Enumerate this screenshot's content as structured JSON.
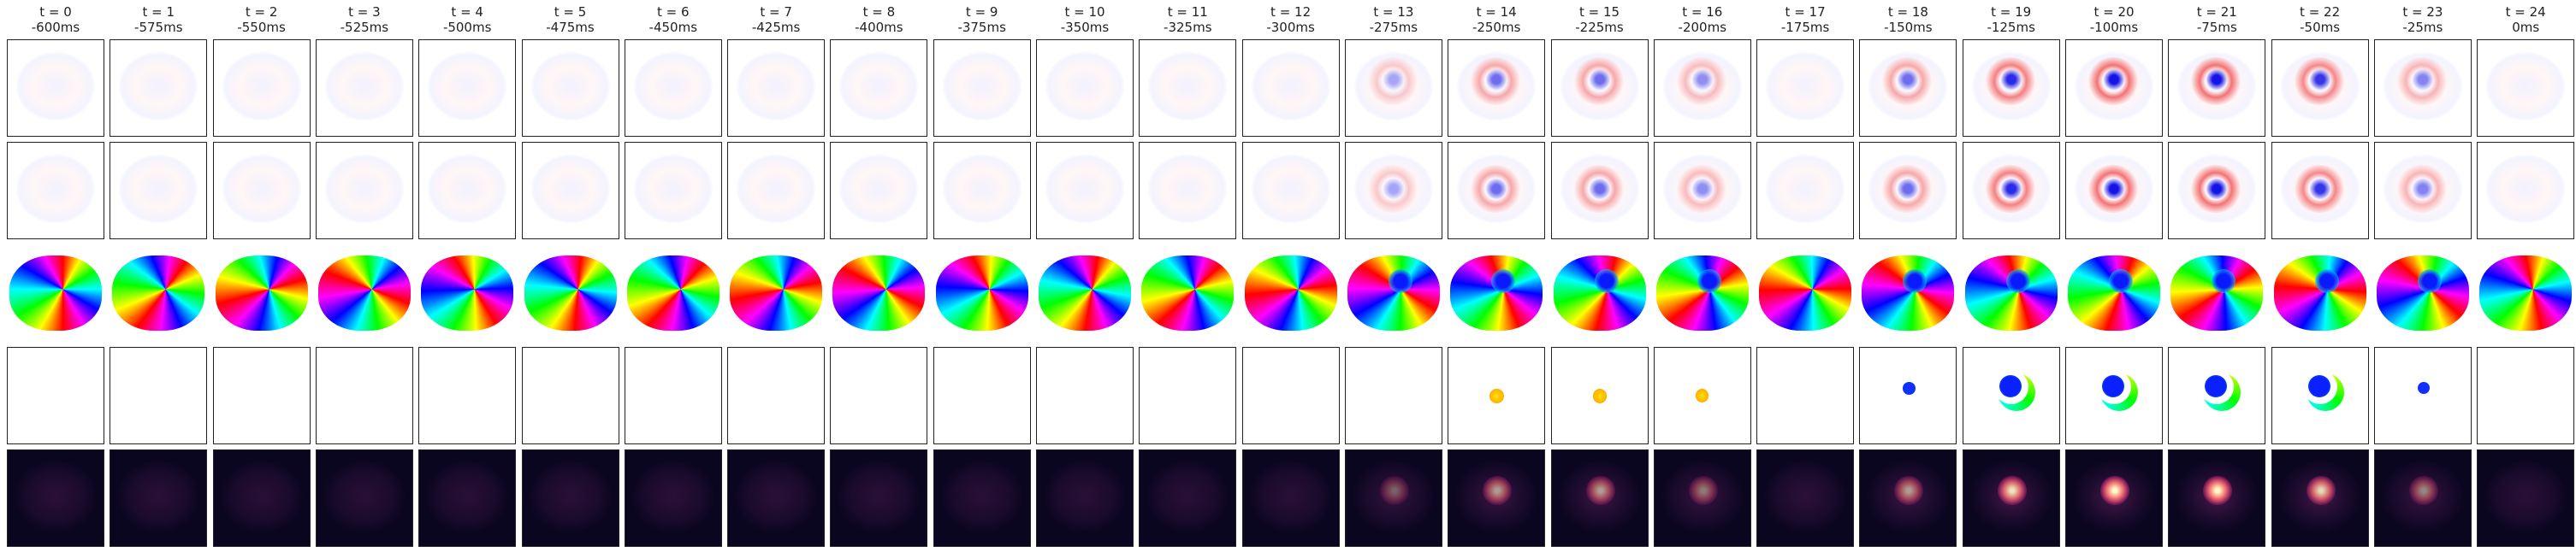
{
  "columns": [
    {
      "label": "t = 0",
      "time": "-600ms"
    },
    {
      "label": "t = 1",
      "time": "-575ms"
    },
    {
      "label": "t = 2",
      "time": "-550ms"
    },
    {
      "label": "t = 3",
      "time": "-525ms"
    },
    {
      "label": "t = 4",
      "time": "-500ms"
    },
    {
      "label": "t = 5",
      "time": "-475ms"
    },
    {
      "label": "t = 6",
      "time": "-450ms"
    },
    {
      "label": "t = 7",
      "time": "-425ms"
    },
    {
      "label": "t = 8",
      "time": "-400ms"
    },
    {
      "label": "t = 9",
      "time": "-375ms"
    },
    {
      "label": "t = 10",
      "time": "-350ms"
    },
    {
      "label": "t = 11",
      "time": "-325ms"
    },
    {
      "label": "t = 12",
      "time": "-300ms"
    },
    {
      "label": "t = 13",
      "time": "-275ms"
    },
    {
      "label": "t = 14",
      "time": "-250ms"
    },
    {
      "label": "t = 15",
      "time": "-225ms"
    },
    {
      "label": "t = 16",
      "time": "-200ms"
    },
    {
      "label": "t = 17",
      "time": "-175ms"
    },
    {
      "label": "t = 18",
      "time": "-150ms"
    },
    {
      "label": "t = 19",
      "time": "-125ms"
    },
    {
      "label": "t = 20",
      "time": "-100ms"
    },
    {
      "label": "t = 21",
      "time": "-75ms"
    },
    {
      "label": "t = 22",
      "time": "-50ms"
    },
    {
      "label": "t = 23",
      "time": "-25ms"
    },
    {
      "label": "t = 24",
      "time": "0ms"
    }
  ]
}
